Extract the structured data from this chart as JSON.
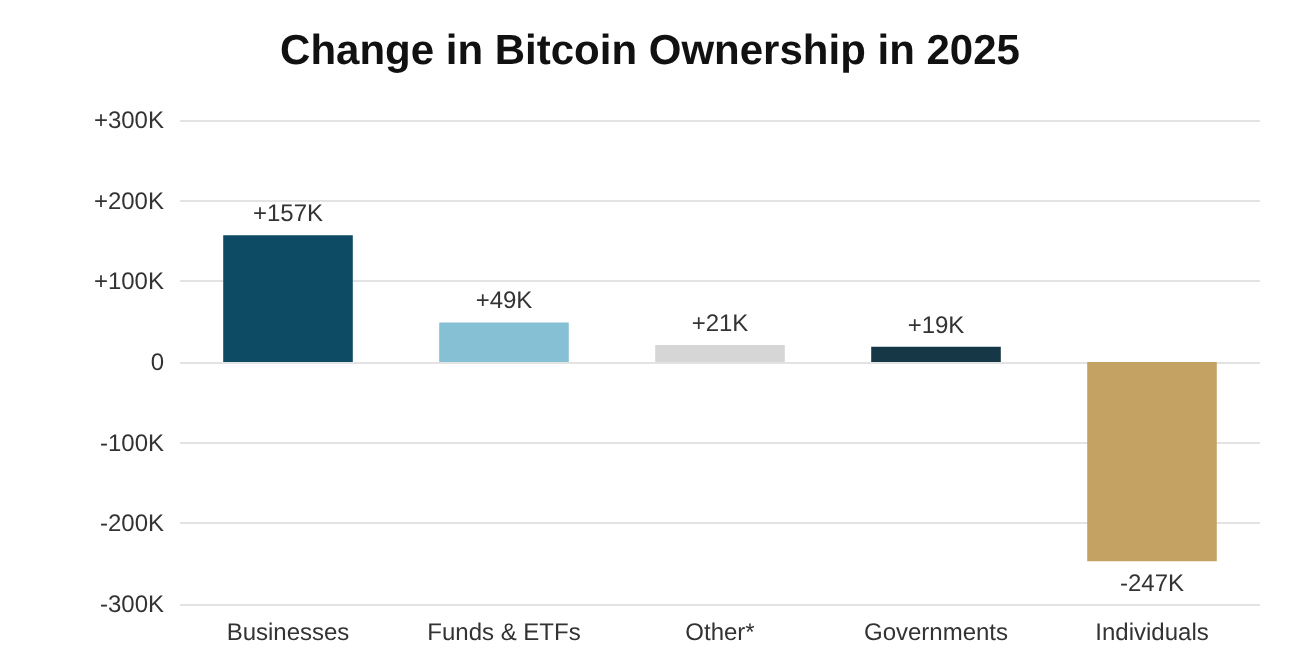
{
  "chart_data": {
    "type": "bar",
    "title": "Change in Bitcoin Ownership in 2025",
    "categories": [
      "Businesses",
      "Funds & ETFs",
      "Other*",
      "Governments",
      "Individuals"
    ],
    "values": [
      157,
      49,
      21,
      19,
      -247
    ],
    "colors": [
      "#0d4a63",
      "#86c0d4",
      "#d6d6d6",
      "#163846",
      "#c4a263"
    ],
    "value_labels": [
      "+157K",
      "+49K",
      "+21K",
      "+19K",
      "-247K"
    ],
    "ylim": [
      -300,
      300
    ],
    "yticks": [
      {
        "value": -300,
        "label": "-300K"
      },
      {
        "value": -200,
        "label": "-200K"
      },
      {
        "value": -100,
        "label": "-100K"
      },
      {
        "value": 0,
        "label": "0"
      },
      {
        "value": 100,
        "label": "+100K"
      },
      {
        "value": 200,
        "label": "+200K"
      },
      {
        "value": 300,
        "label": "+300K"
      }
    ],
    "grid": "y"
  }
}
